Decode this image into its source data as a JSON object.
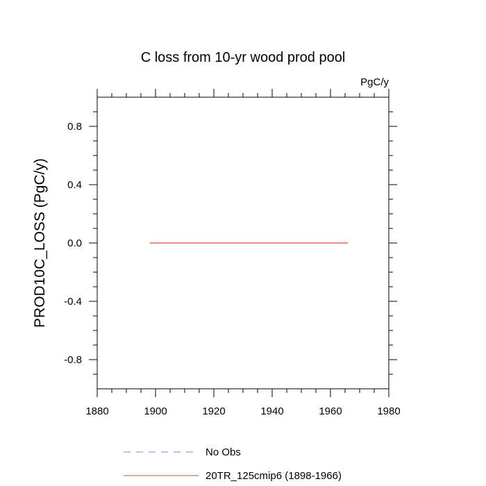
{
  "chart_data": {
    "type": "line",
    "title": "C loss from 10-yr wood prod pool",
    "units": "PgC/y",
    "ylabel": "PROD10C_LOSS  (PgC/y)",
    "xlabel": "",
    "xlim": [
      1880,
      1980
    ],
    "ylim": [
      -1.0,
      1.0
    ],
    "xticks": [
      1880,
      1900,
      1920,
      1940,
      1960,
      1980
    ],
    "xtick_labels": [
      "1880",
      "1900",
      "1920",
      "1940",
      "1960",
      "1980"
    ],
    "yticks": [
      0.8,
      0.4,
      0.0,
      -0.4,
      -0.8
    ],
    "ytick_labels": [
      "0.8",
      "0.4",
      "0.0",
      "-0.4",
      "-0.8"
    ],
    "grid": false,
    "legend_position": "bottom",
    "series": [
      {
        "name": "No Obs",
        "color": "#7f7fff",
        "dash": "dashed",
        "x": [],
        "y": []
      },
      {
        "name": "20TR_125cmip6 (1898-1966)",
        "color": "#e84040",
        "dash": "solid",
        "x": [
          1898,
          1966
        ],
        "y": [
          0.0,
          0.0
        ]
      }
    ]
  }
}
